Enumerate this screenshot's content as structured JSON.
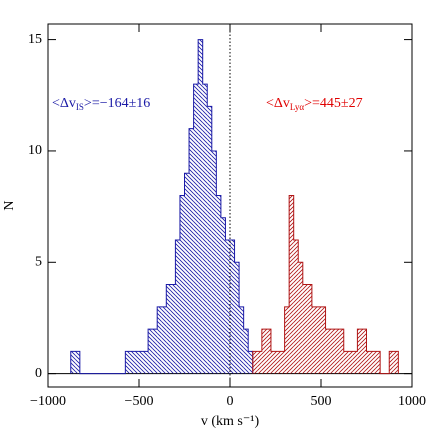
{
  "chart_data": {
    "type": "histogram",
    "x_label": "v (km s⁻¹)",
    "y_label": "N",
    "xlim": [
      -1000,
      1000
    ],
    "ylim": [
      -0.6,
      15.7
    ],
    "xticks": [
      {
        "value": -1000,
        "label": "−1000"
      },
      {
        "value": -500,
        "label": "−500"
      },
      0,
      500,
      1000
    ],
    "yticks": [
      0,
      5,
      10,
      15
    ],
    "vline": 0,
    "series": [
      {
        "color": "#1a1aa6",
        "hatch": "backslash",
        "bins": [
          -875,
          -850,
          -825,
          -800,
          -775,
          -750,
          -725,
          -700,
          -675,
          -650,
          -625,
          -600,
          -575,
          -550,
          -525,
          -500,
          -475,
          -450,
          -425,
          -400,
          -375,
          -350,
          -325,
          -300,
          -275,
          -250,
          -225,
          -200,
          -175,
          -150,
          -125,
          -100,
          -75,
          -50,
          -25,
          0,
          25,
          50,
          75,
          100,
          125
        ],
        "values": [
          1,
          1,
          0,
          0,
          0,
          0,
          0,
          0,
          0,
          0,
          0,
          0,
          1,
          1,
          1,
          1,
          1,
          2,
          2,
          3,
          3,
          4,
          4,
          6,
          8,
          9,
          11,
          13,
          15,
          13,
          12,
          10,
          8,
          7,
          6,
          6,
          5,
          3,
          2,
          1
        ]
      },
      {
        "color": "#b01515",
        "hatch": "slash",
        "bins": [
          125,
          150,
          175,
          200,
          225,
          250,
          275,
          300,
          325,
          350,
          375,
          400,
          425,
          450,
          475,
          500,
          525,
          550,
          575,
          600,
          625,
          650,
          675,
          700,
          725,
          750,
          775,
          800,
          825,
          850,
          875,
          900,
          925
        ],
        "values": [
          1,
          1,
          2,
          2,
          1,
          1,
          1,
          3,
          8,
          6,
          5,
          4,
          4,
          3,
          3,
          3,
          2,
          2,
          2,
          2,
          1,
          1,
          1,
          2,
          2,
          1,
          1,
          1,
          0,
          0,
          1,
          1
        ]
      }
    ],
    "annotations": [
      {
        "pre": "<Δv",
        "sub": "IS",
        "post": ">=−164±16",
        "color": "#1a1aa6"
      },
      {
        "pre": "<Δv",
        "sub": "Lyα",
        "post": ">=445±27",
        "color": "#e00000"
      }
    ]
  }
}
